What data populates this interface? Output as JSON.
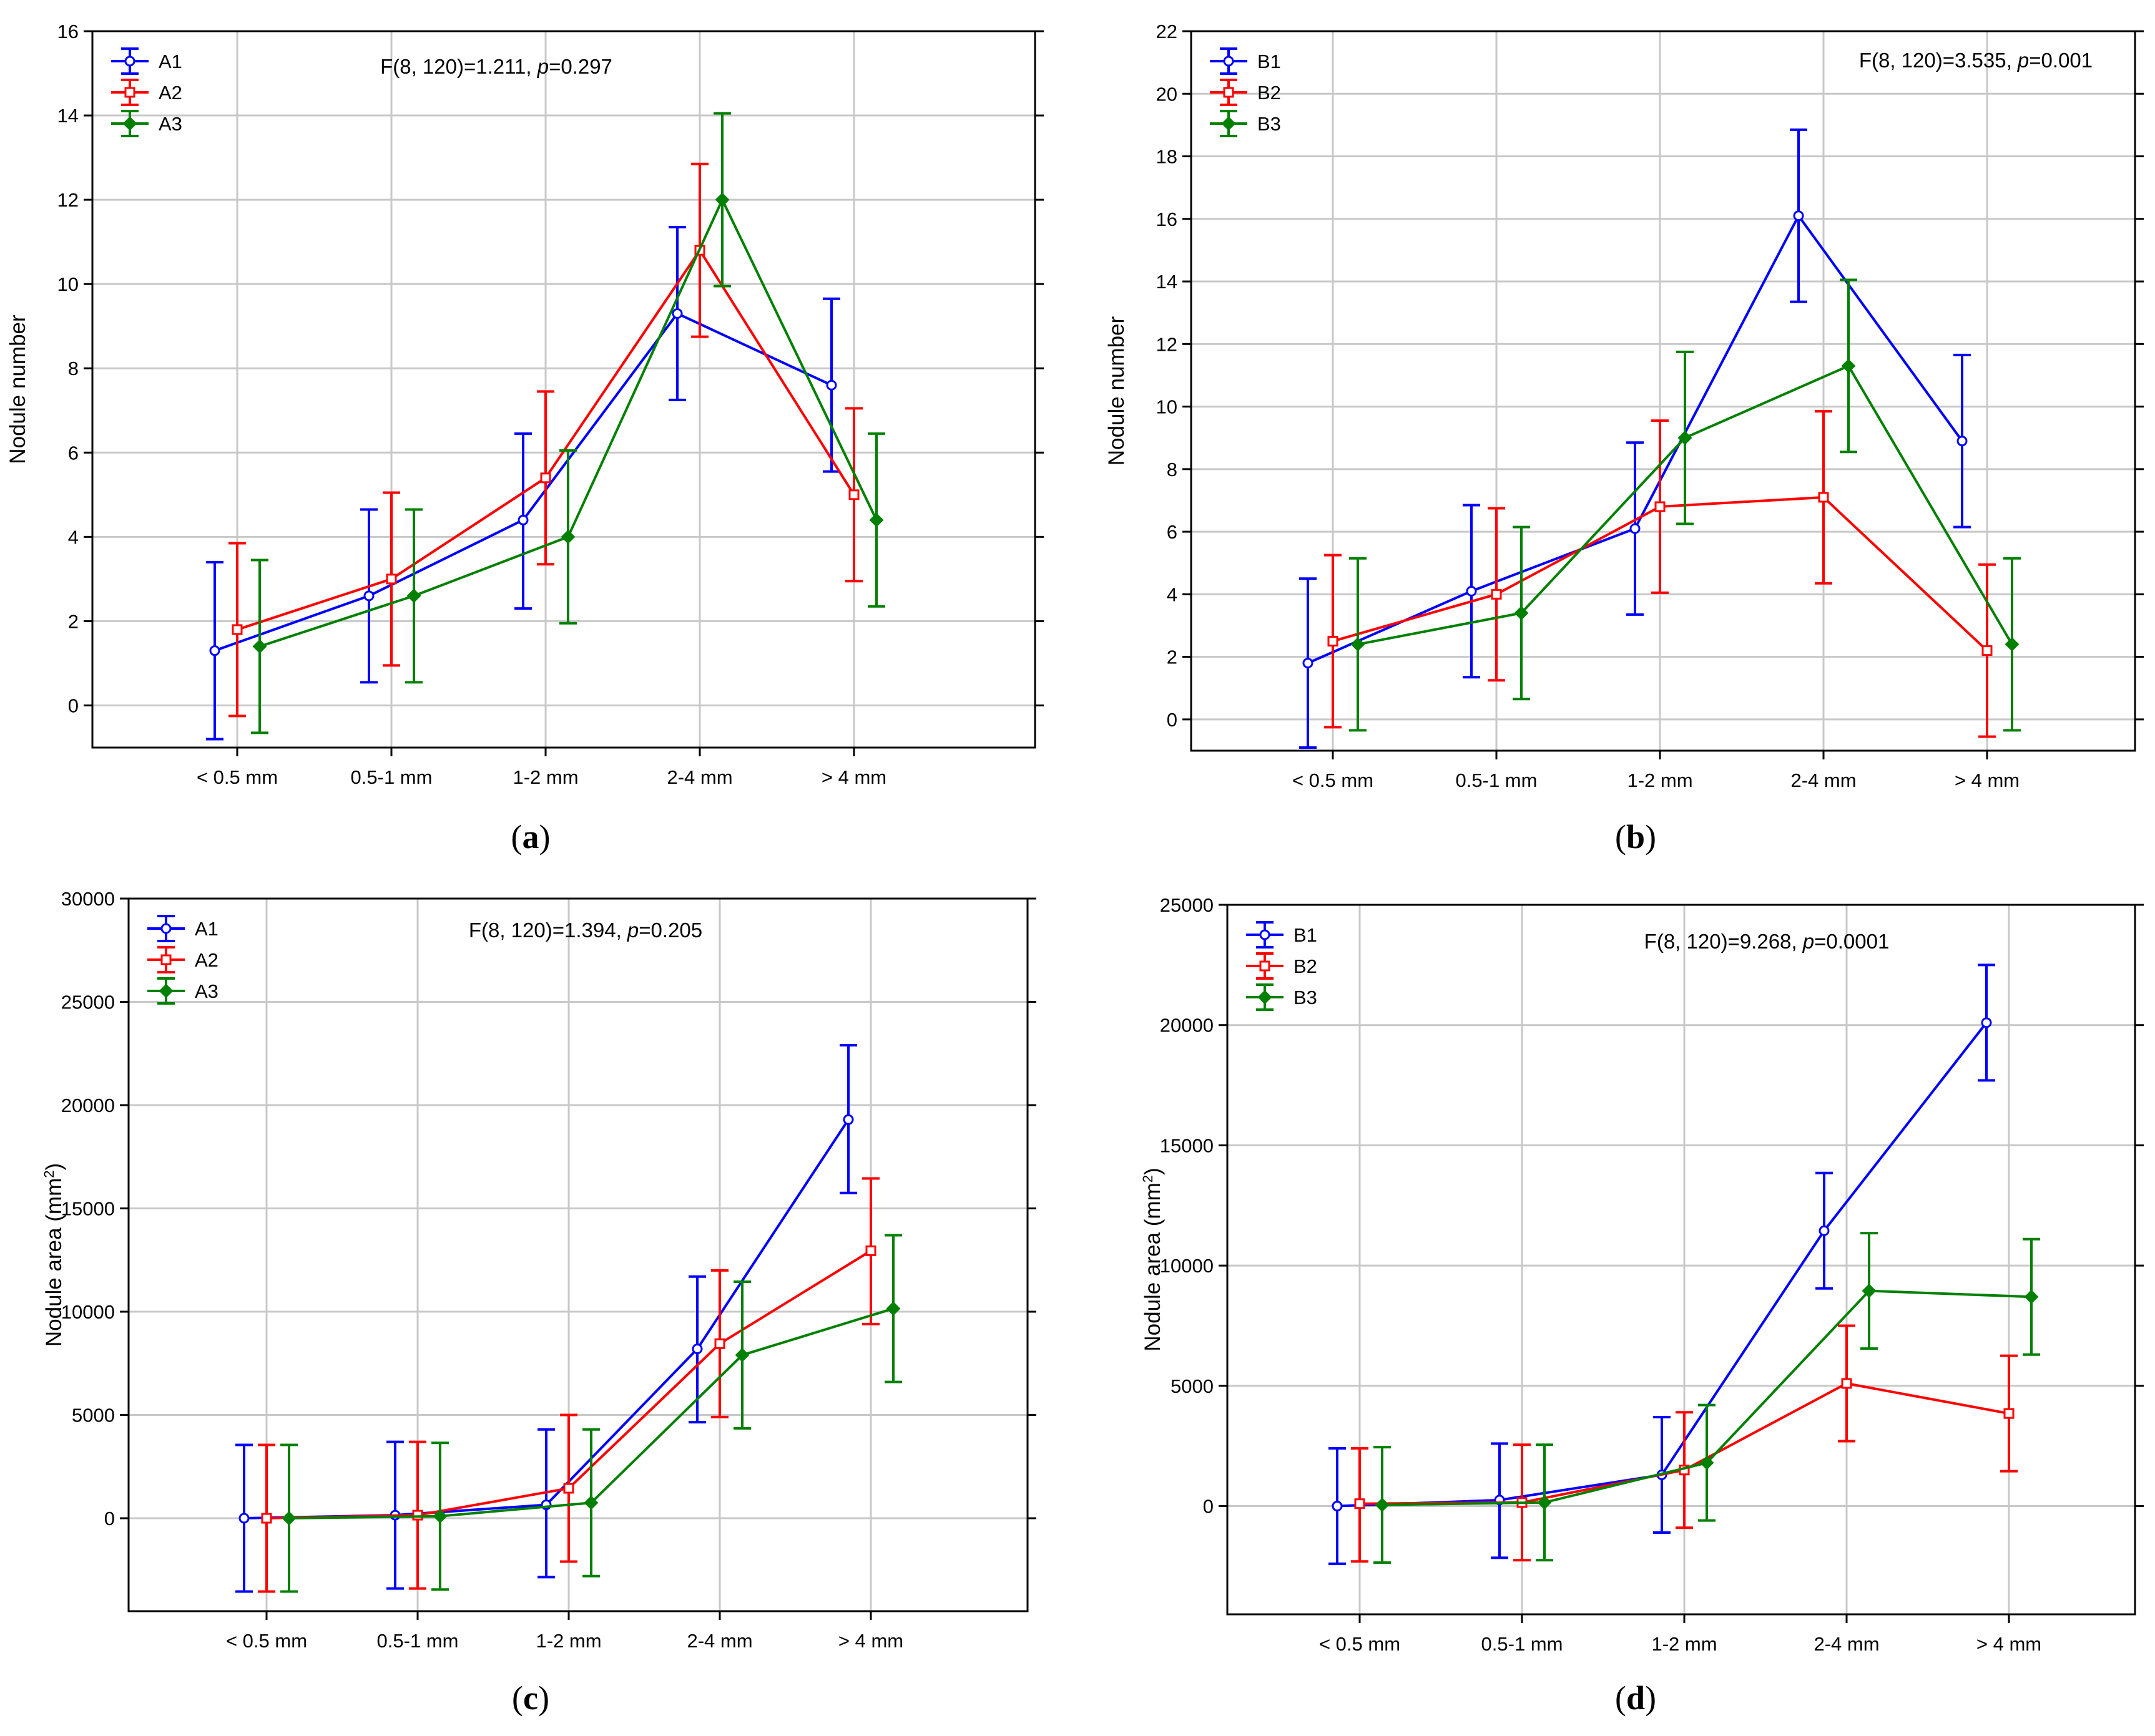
{
  "colors": {
    "series1": "#0000ff",
    "series2": "#ff0000",
    "series3": "#008000",
    "grid": "#c8c8c8",
    "frame": "#000000"
  },
  "chart_data": [
    {
      "id": "a",
      "caption": "a",
      "type": "line",
      "title": "",
      "xlabel": "",
      "ylabel": "Nodule number",
      "ylabel_sup": "",
      "ylabel_after": "",
      "annotation": {
        "prefix": "F(8, 120)=1.211, ",
        "p": "p",
        "suffix": "=0.297"
      },
      "categories": [
        "< 0.5 mm",
        "0.5-1 mm",
        "1-2 mm",
        "2-4 mm",
        "> 4 mm"
      ],
      "ylim": [
        -1,
        16
      ],
      "yticks": [
        0,
        2,
        4,
        6,
        8,
        10,
        12,
        14,
        16
      ],
      "ytick_labels": [
        "0",
        "2",
        "4",
        "6",
        "8",
        "10",
        "12",
        "14",
        "16"
      ],
      "series": [
        {
          "name": "A1",
          "marker": "circle",
          "values": [
            1.3,
            2.6,
            4.4,
            9.3,
            7.6
          ],
          "lower": [
            -0.8,
            0.55,
            2.3,
            7.25,
            5.55
          ],
          "upper": [
            3.4,
            4.65,
            6.45,
            11.35,
            9.65
          ]
        },
        {
          "name": "A2",
          "marker": "square",
          "values": [
            1.8,
            3.0,
            5.4,
            10.8,
            5.0
          ],
          "lower": [
            -0.25,
            0.95,
            3.35,
            8.75,
            2.95
          ],
          "upper": [
            3.85,
            5.05,
            7.45,
            12.85,
            7.05
          ]
        },
        {
          "name": "A3",
          "marker": "diamond",
          "values": [
            1.4,
            2.6,
            4.0,
            12.0,
            4.4
          ],
          "lower": [
            -0.65,
            0.55,
            1.95,
            9.95,
            2.35
          ],
          "upper": [
            3.45,
            4.65,
            6.05,
            14.05,
            6.45
          ]
        }
      ]
    },
    {
      "id": "b",
      "caption": "b",
      "type": "line",
      "title": "",
      "xlabel": "",
      "ylabel": "Nodule number",
      "ylabel_sup": "",
      "ylabel_after": "",
      "annotation": {
        "prefix": "F(8, 120)=3.535, ",
        "p": "p",
        "suffix": "=0.001"
      },
      "categories": [
        "< 0.5 mm",
        "0.5-1 mm",
        "1-2 mm",
        "2-4 mm",
        "> 4 mm"
      ],
      "ylim": [
        -1,
        22
      ],
      "yticks": [
        0,
        2,
        4,
        6,
        8,
        10,
        12,
        14,
        16,
        18,
        20,
        22
      ],
      "ytick_labels": [
        "0",
        "2",
        "4",
        "6",
        "8",
        "10",
        "12",
        "14",
        "16",
        "18",
        "20",
        "22"
      ],
      "series": [
        {
          "name": "B1",
          "marker": "circle",
          "values": [
            1.8,
            4.1,
            6.1,
            16.1,
            8.9
          ],
          "lower": [
            -0.9,
            1.35,
            3.35,
            13.35,
            6.15
          ],
          "upper": [
            4.5,
            6.85,
            8.85,
            18.85,
            11.65
          ]
        },
        {
          "name": "B2",
          "marker": "square",
          "values": [
            2.5,
            4.0,
            6.8,
            7.1,
            2.2
          ],
          "lower": [
            -0.25,
            1.25,
            4.05,
            4.35,
            -0.55
          ],
          "upper": [
            5.25,
            6.75,
            9.55,
            9.85,
            4.95
          ]
        },
        {
          "name": "B3",
          "marker": "diamond",
          "values": [
            2.4,
            3.4,
            9.0,
            11.3,
            2.4
          ],
          "lower": [
            -0.35,
            0.65,
            6.25,
            8.55,
            -0.35
          ],
          "upper": [
            5.15,
            6.15,
            11.75,
            14.05,
            5.15
          ]
        }
      ]
    },
    {
      "id": "c",
      "caption": "c",
      "type": "line",
      "title": "",
      "xlabel": "",
      "ylabel": "Nodule area (mm",
      "ylabel_sup": "2",
      "ylabel_after": ")",
      "annotation": {
        "prefix": "F(8, 120)=1.394, ",
        "p": "p",
        "suffix": "=0.205"
      },
      "categories": [
        "< 0.5 mm",
        "0.5-1 mm",
        "1-2 mm",
        "2-4 mm",
        "> 4 mm"
      ],
      "ylim": [
        -4500,
        30000
      ],
      "yticks": [
        0,
        5000,
        10000,
        15000,
        20000,
        25000,
        30000
      ],
      "ytick_labels": [
        "0",
        "5000",
        "10000",
        "15000",
        "20000",
        "25000",
        "30000"
      ],
      "series": [
        {
          "name": "A1",
          "marker": "circle",
          "values": [
            0,
            150,
            650,
            8200,
            19300
          ],
          "lower": [
            -3550,
            -3400,
            -2850,
            4650,
            15750
          ],
          "upper": [
            3550,
            3700,
            4300,
            11700,
            22900
          ]
        },
        {
          "name": "A2",
          "marker": "square",
          "values": [
            0,
            150,
            1450,
            8450,
            12950
          ],
          "lower": [
            -3550,
            -3400,
            -2100,
            4900,
            9400
          ],
          "upper": [
            3550,
            3700,
            5000,
            12000,
            16450
          ]
        },
        {
          "name": "A3",
          "marker": "diamond",
          "values": [
            0,
            100,
            750,
            7900,
            10150
          ],
          "lower": [
            -3550,
            -3450,
            -2800,
            4350,
            6600
          ],
          "upper": [
            3550,
            3650,
            4300,
            11450,
            13700
          ]
        }
      ]
    },
    {
      "id": "d",
      "caption": "d",
      "type": "line",
      "title": "",
      "xlabel": "",
      "ylabel": "Nodule area (mm",
      "ylabel_sup": "2",
      "ylabel_after": ")",
      "annotation": {
        "prefix": "F(8, 120)=9.268, ",
        "p": "p",
        "suffix": "=0.0001"
      },
      "categories": [
        "< 0.5 mm",
        "0.5-1 mm",
        "1-2 mm",
        "2-4 mm",
        "> 4 mm"
      ],
      "ylim": [
        -4500,
        25000
      ],
      "yticks": [
        0,
        5000,
        10000,
        15000,
        20000,
        25000
      ],
      "ytick_labels": [
        "0",
        "5000",
        "10000",
        "15000",
        "20000",
        "25000"
      ],
      "series": [
        {
          "name": "B1",
          "marker": "circle",
          "values": [
            0,
            250,
            1300,
            11450,
            20100
          ],
          "lower": [
            -2400,
            -2150,
            -1100,
            9050,
            17700
          ],
          "upper": [
            2400,
            2600,
            3700,
            13850,
            22500
          ]
        },
        {
          "name": "B2",
          "marker": "square",
          "values": [
            100,
            150,
            1500,
            5100,
            3850
          ],
          "lower": [
            -2300,
            -2250,
            -900,
            2700,
            1450
          ],
          "upper": [
            2400,
            2550,
            3900,
            7500,
            6250
          ]
        },
        {
          "name": "B3",
          "marker": "diamond",
          "values": [
            50,
            150,
            1800,
            8950,
            8700
          ],
          "lower": [
            -2350,
            -2250,
            -600,
            6550,
            6300
          ],
          "upper": [
            2450,
            2550,
            4200,
            11350,
            11100
          ]
        }
      ]
    }
  ]
}
